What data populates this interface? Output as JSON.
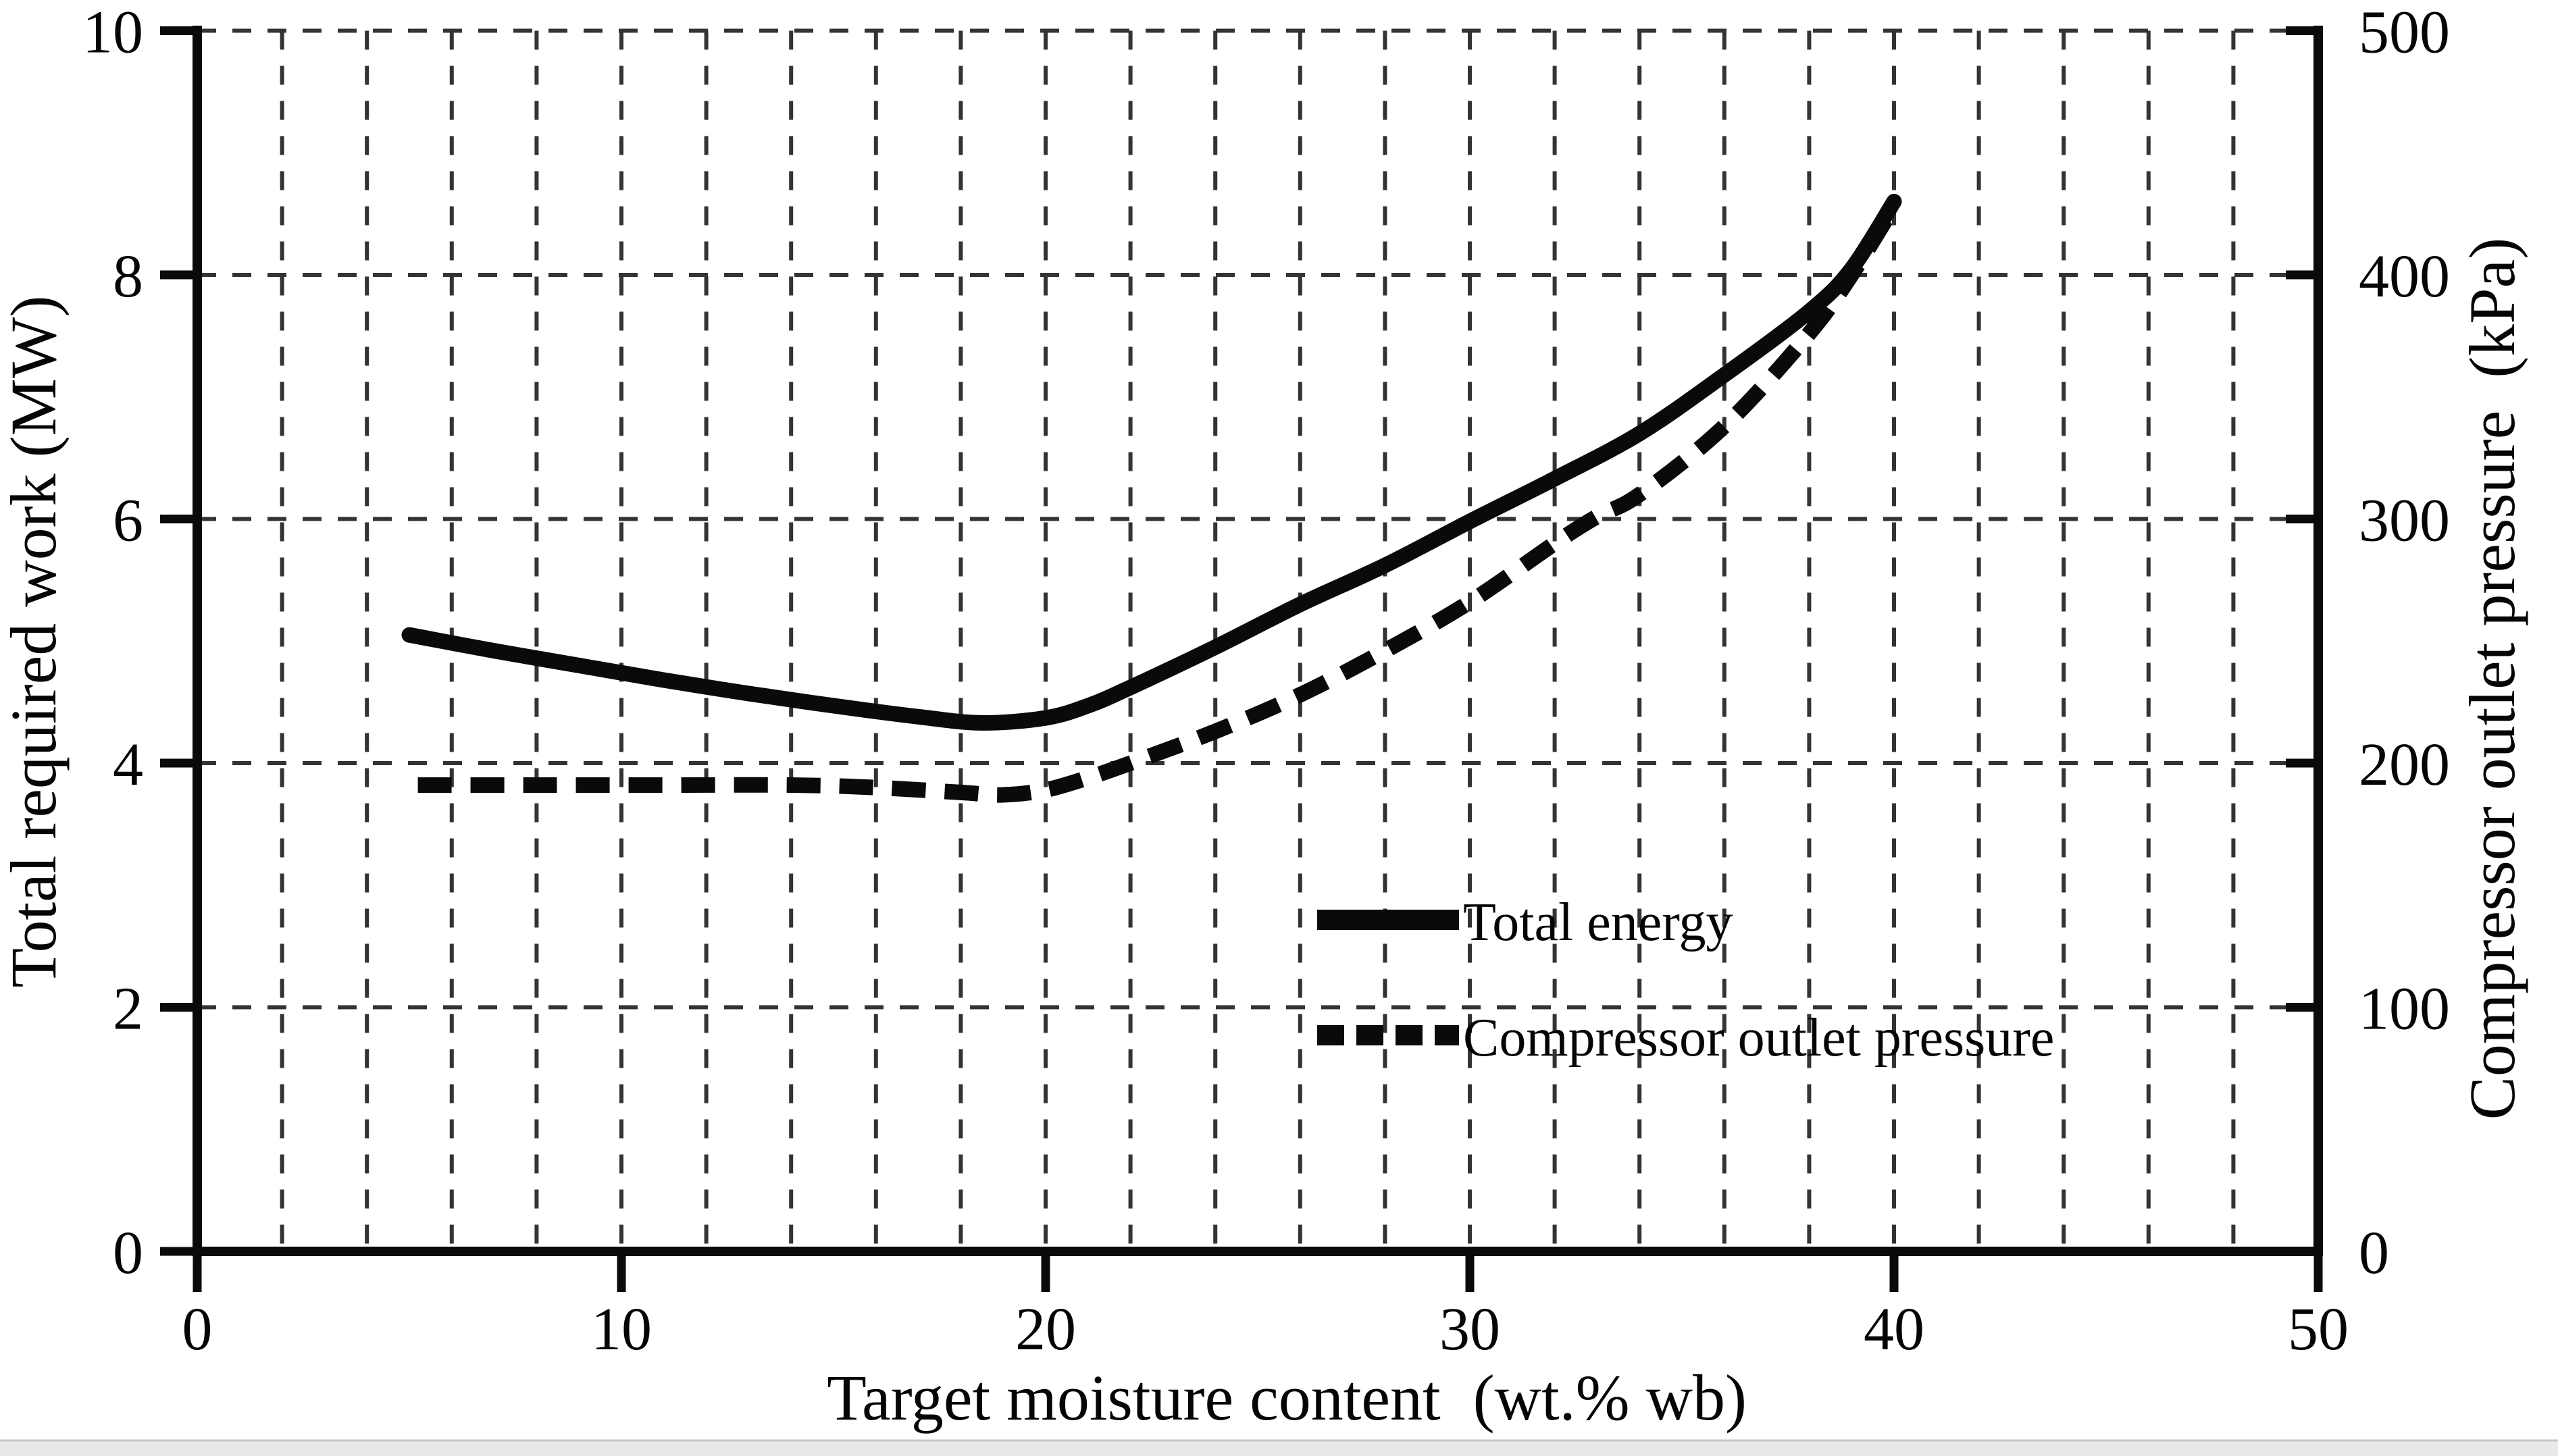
{
  "figure": {
    "background_color": "#ffffff",
    "line_color": "#0a0a0a",
    "gridline_color": "#333333",
    "footer_band_color": "#e9e9e9",
    "footer_band_edge_color": "#c9c9c9"
  },
  "legend": [
    {
      "label": "Total energy",
      "style": "solid"
    },
    {
      "label": "Compressor outlet pressure",
      "style": "dashed"
    }
  ],
  "chart_data": {
    "type": "line",
    "title": "",
    "xlabel": "Target moisture content  (wt.% wb)",
    "ylabel_left": "Total required work (MW)",
    "ylabel_right": "Compressor outlet pressure  (kPa)",
    "x_range": [
      0,
      50
    ],
    "y_left_range": [
      0,
      10
    ],
    "y_right_range": [
      0,
      500
    ],
    "x_ticks": [
      0,
      10,
      20,
      30,
      40,
      50
    ],
    "y_left_ticks": [
      0,
      2,
      4,
      6,
      8,
      10
    ],
    "y_right_ticks": [
      0,
      100,
      200,
      300,
      400,
      500
    ],
    "x_grid_step": 2,
    "y_grid_step_left": 2,
    "grid_style": "dashed",
    "legend_position": "inside lower-right",
    "series": [
      {
        "name": "Total energy",
        "axis": "left",
        "unit": "MW",
        "style": "solid",
        "points": [
          [
            5,
            5.05
          ],
          [
            7,
            4.92
          ],
          [
            9,
            4.8
          ],
          [
            11,
            4.68
          ],
          [
            13,
            4.57
          ],
          [
            15,
            4.47
          ],
          [
            17,
            4.38
          ],
          [
            18.5,
            4.33
          ],
          [
            20,
            4.37
          ],
          [
            21,
            4.47
          ],
          [
            22,
            4.62
          ],
          [
            24,
            4.95
          ],
          [
            26,
            5.3
          ],
          [
            28,
            5.62
          ],
          [
            30,
            5.98
          ],
          [
            32,
            6.33
          ],
          [
            34,
            6.7
          ],
          [
            36,
            7.18
          ],
          [
            38,
            7.7
          ],
          [
            39,
            8.05
          ],
          [
            40,
            8.6
          ]
        ]
      },
      {
        "name": "Compressor outlet pressure",
        "axis": "right",
        "unit": "kPa",
        "style": "dashed",
        "points": [
          [
            5.2,
            191
          ],
          [
            8,
            191
          ],
          [
            11,
            191
          ],
          [
            14,
            191
          ],
          [
            16,
            190
          ],
          [
            18,
            188
          ],
          [
            19,
            187
          ],
          [
            20,
            189
          ],
          [
            21,
            194
          ],
          [
            22,
            200
          ],
          [
            24,
            213
          ],
          [
            26,
            228
          ],
          [
            28,
            246
          ],
          [
            30,
            266
          ],
          [
            32,
            290
          ],
          [
            33,
            301
          ],
          [
            34,
            310
          ],
          [
            36,
            338
          ],
          [
            38,
            376
          ],
          [
            39,
            400
          ],
          [
            40,
            428
          ]
        ]
      }
    ]
  }
}
